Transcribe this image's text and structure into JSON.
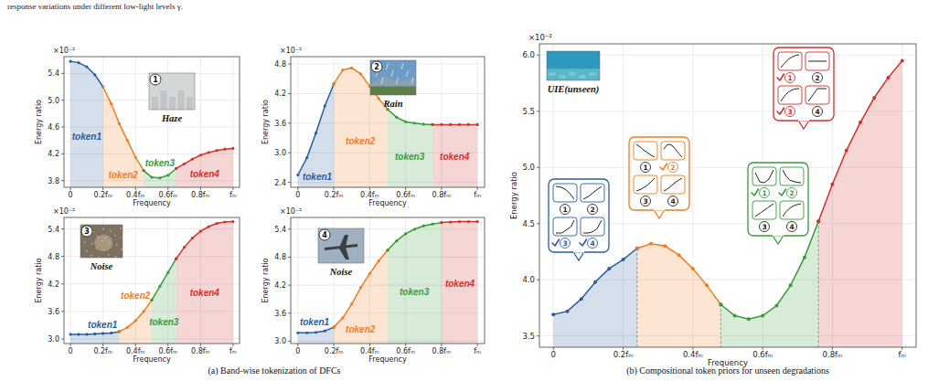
{
  "page": {
    "top_text": "response variations under different low-light levels γ.",
    "captions": [
      "(a) Band-wise tokenization of DFCs",
      "(b) Compositional token priors for unseen degradations"
    ]
  },
  "chart_data": [
    {
      "type": "area",
      "marker": "circle",
      "grid": true,
      "x_label": "Frequency",
      "y_label": "Energy ratio",
      "y_multiplier": "×10⁻²",
      "annotations": [
        {
          "text": "Haze",
          "badge": "1"
        }
      ],
      "x": [
        0,
        0.05,
        0.1,
        0.15,
        0.2,
        0.25,
        0.3,
        0.35,
        0.4,
        0.45,
        0.5,
        0.55,
        0.6,
        0.65,
        0.7,
        0.75,
        0.8,
        0.85,
        0.9,
        0.95,
        1
      ],
      "xlim": [
        -0.04,
        1.04
      ],
      "xticks": [
        0,
        {
          "value": 0.2,
          "label": "0.2fₘ"
        },
        {
          "value": 0.4,
          "label": "0.4fₘ"
        },
        {
          "value": 0.6,
          "label": "0.6fₘ"
        },
        {
          "value": 0.8,
          "label": "0.8fₘ"
        },
        {
          "value": 1,
          "label": "fₘ"
        }
      ],
      "ylim": [
        3.7,
        5.65
      ],
      "yticks": [
        3.8,
        4.2,
        4.6,
        {
          "value": 5,
          "label": "5.0"
        },
        5.4
      ],
      "series": [
        {
          "name": "token1",
          "color": "#2b5d9b",
          "values": [
            5.58,
            5.56,
            5.5,
            5.38,
            5.2,
            null,
            null,
            null,
            null,
            null,
            null,
            null,
            null,
            null,
            null,
            null,
            null,
            null,
            null,
            null,
            null
          ]
        },
        {
          "name": "token2",
          "color": "#ee7d1e",
          "values": [
            null,
            null,
            null,
            null,
            5.2,
            4.95,
            4.65,
            4.4,
            4.15,
            3.95,
            null,
            null,
            null,
            null,
            null,
            null,
            null,
            null,
            null,
            null,
            null
          ]
        },
        {
          "name": "token3",
          "color": "#3a9a3a",
          "values": [
            null,
            null,
            null,
            null,
            null,
            null,
            null,
            null,
            null,
            3.95,
            3.85,
            3.84,
            3.88,
            3.98,
            null,
            null,
            null,
            null,
            null,
            null,
            null
          ]
        },
        {
          "name": "token4",
          "color": "#d0312d",
          "values": [
            null,
            null,
            null,
            null,
            null,
            null,
            null,
            null,
            null,
            null,
            null,
            null,
            null,
            3.98,
            4.05,
            4.12,
            4.18,
            4.22,
            4.25,
            4.27,
            4.28
          ]
        }
      ]
    },
    {
      "type": "area",
      "marker": "circle",
      "grid": true,
      "x_label": "Frequency",
      "y_label": "Energy ratio",
      "y_multiplier": "×10⁻²",
      "annotations": [
        {
          "text": "Rain",
          "badge": "2"
        }
      ],
      "x": [
        0,
        0.05,
        0.1,
        0.15,
        0.2,
        0.25,
        0.3,
        0.35,
        0.4,
        0.45,
        0.5,
        0.55,
        0.6,
        0.65,
        0.7,
        0.75,
        0.8,
        0.85,
        0.9,
        0.95,
        1
      ],
      "xlim": [
        -0.04,
        1.04
      ],
      "xticks": [
        0,
        {
          "value": 0.2,
          "label": "0.2fₘ"
        },
        {
          "value": 0.4,
          "label": "0.4fₘ"
        },
        {
          "value": 0.6,
          "label": "0.6fₘ"
        },
        {
          "value": 0.8,
          "label": "0.8fₘ"
        },
        {
          "value": 1,
          "label": "fₘ"
        }
      ],
      "ylim": [
        2.3,
        4.95
      ],
      "yticks": [
        2.4,
        {
          "value": 3,
          "label": "3.0"
        },
        3.6,
        4.2,
        4.8
      ],
      "series": [
        {
          "name": "token1",
          "color": "#2b5d9b",
          "values": [
            2.55,
            2.9,
            3.4,
            3.95,
            4.4,
            null,
            null,
            null,
            null,
            null,
            null,
            null,
            null,
            null,
            null,
            null,
            null,
            null,
            null,
            null,
            null
          ]
        },
        {
          "name": "token2",
          "color": "#ee7d1e",
          "values": [
            null,
            null,
            null,
            null,
            4.4,
            4.68,
            4.72,
            4.6,
            4.35,
            4.1,
            3.88,
            null,
            null,
            null,
            null,
            null,
            null,
            null,
            null,
            null,
            null
          ]
        },
        {
          "name": "token3",
          "color": "#3a9a3a",
          "values": [
            null,
            null,
            null,
            null,
            null,
            null,
            null,
            null,
            null,
            null,
            3.88,
            3.72,
            3.63,
            3.6,
            3.58,
            3.57,
            null,
            null,
            null,
            null,
            null
          ]
        },
        {
          "name": "token4",
          "color": "#d0312d",
          "values": [
            null,
            null,
            null,
            null,
            null,
            null,
            null,
            null,
            null,
            null,
            null,
            null,
            null,
            null,
            null,
            3.57,
            3.57,
            3.57,
            3.57,
            3.57,
            3.57
          ]
        }
      ]
    },
    {
      "type": "area",
      "marker": "circle",
      "grid": true,
      "x_label": "Frequency",
      "y_label": "Energy ratio",
      "y_multiplier": "×10⁻²",
      "annotations": [
        {
          "text": "Noise",
          "badge": "3"
        }
      ],
      "x": [
        0,
        0.05,
        0.1,
        0.15,
        0.2,
        0.25,
        0.3,
        0.35,
        0.4,
        0.45,
        0.5,
        0.55,
        0.6,
        0.65,
        0.7,
        0.75,
        0.8,
        0.85,
        0.9,
        0.95,
        1
      ],
      "xlim": [
        -0.04,
        1.04
      ],
      "xticks": [
        0,
        {
          "value": 0.2,
          "label": "0.2fₘ"
        },
        {
          "value": 0.4,
          "label": "0.4fₘ"
        },
        {
          "value": 0.6,
          "label": "0.6fₘ"
        },
        {
          "value": 0.8,
          "label": "0.8fₘ"
        },
        {
          "value": 1,
          "label": "fₘ"
        }
      ],
      "ylim": [
        2.9,
        5.65
      ],
      "yticks": [
        {
          "value": 3,
          "label": "3.0"
        },
        3.6,
        4.2,
        4.8,
        5.4
      ],
      "series": [
        {
          "name": "token1",
          "color": "#2b5d9b",
          "values": [
            3.1,
            3.1,
            3.1,
            3.11,
            3.12,
            3.13,
            3.16,
            null,
            null,
            null,
            null,
            null,
            null,
            null,
            null,
            null,
            null,
            null,
            null,
            null,
            null
          ]
        },
        {
          "name": "token2",
          "color": "#ee7d1e",
          "values": [
            null,
            null,
            null,
            null,
            null,
            null,
            3.16,
            3.25,
            3.4,
            3.6,
            3.85,
            null,
            null,
            null,
            null,
            null,
            null,
            null,
            null,
            null,
            null
          ]
        },
        {
          "name": "token3",
          "color": "#3a9a3a",
          "values": [
            null,
            null,
            null,
            null,
            null,
            null,
            null,
            null,
            null,
            null,
            3.85,
            4.15,
            4.45,
            4.75,
            null,
            null,
            null,
            null,
            null,
            null,
            null
          ]
        },
        {
          "name": "token4",
          "color": "#d0312d",
          "values": [
            null,
            null,
            null,
            null,
            null,
            null,
            null,
            null,
            null,
            null,
            null,
            null,
            null,
            4.75,
            5.0,
            5.2,
            5.35,
            5.45,
            5.52,
            5.55,
            5.56
          ]
        }
      ]
    },
    {
      "type": "area",
      "marker": "circle",
      "grid": true,
      "x_label": "Frequency",
      "y_label": "Energy ratio",
      "y_multiplier": "×10⁻²",
      "annotations": [
        {
          "text": "Noise",
          "badge": "4"
        }
      ],
      "x": [
        0,
        0.05,
        0.1,
        0.15,
        0.2,
        0.25,
        0.3,
        0.35,
        0.4,
        0.45,
        0.5,
        0.55,
        0.6,
        0.65,
        0.7,
        0.75,
        0.8,
        0.85,
        0.9,
        0.95,
        1
      ],
      "xlim": [
        -0.04,
        1.04
      ],
      "xticks": [
        0,
        {
          "value": 0.2,
          "label": "0.2fₘ"
        },
        {
          "value": 0.4,
          "label": "0.4fₘ"
        },
        {
          "value": 0.6,
          "label": "0.6fₘ"
        },
        {
          "value": 0.8,
          "label": "0.8fₘ"
        },
        {
          "value": 1,
          "label": "fₘ"
        }
      ],
      "ylim": [
        2.95,
        5.65
      ],
      "yticks": [
        {
          "value": 3,
          "label": "3.0"
        },
        3.6,
        4.2,
        4.8,
        5.4
      ],
      "series": [
        {
          "name": "token1",
          "color": "#2b5d9b",
          "values": [
            3.18,
            3.18,
            3.19,
            3.22,
            3.3,
            null,
            null,
            null,
            null,
            null,
            null,
            null,
            null,
            null,
            null,
            null,
            null,
            null,
            null,
            null,
            null
          ]
        },
        {
          "name": "token2",
          "color": "#ee7d1e",
          "values": [
            null,
            null,
            null,
            null,
            3.3,
            3.5,
            3.8,
            4.15,
            4.45,
            4.72,
            4.95,
            null,
            null,
            null,
            null,
            null,
            null,
            null,
            null,
            null,
            null
          ]
        },
        {
          "name": "token3",
          "color": "#3a9a3a",
          "values": [
            null,
            null,
            null,
            null,
            null,
            null,
            null,
            null,
            null,
            null,
            4.95,
            5.15,
            5.3,
            5.4,
            5.47,
            5.51,
            5.54,
            null,
            null,
            null,
            null
          ]
        },
        {
          "name": "token4",
          "color": "#d0312d",
          "values": [
            null,
            null,
            null,
            null,
            null,
            null,
            null,
            null,
            null,
            null,
            null,
            null,
            null,
            null,
            null,
            null,
            5.54,
            5.55,
            5.56,
            5.56,
            5.56
          ]
        }
      ]
    },
    {
      "type": "area",
      "marker": "circle",
      "grid": true,
      "x_label": "Frequency",
      "y_label": "Energy ratio",
      "y_multiplier": "×10⁻²",
      "annotations": [
        {
          "text": "UIE(unseen)"
        }
      ],
      "x": [
        0,
        0.04,
        0.08,
        0.12,
        0.16,
        0.2,
        0.24,
        0.28,
        0.32,
        0.36,
        0.4,
        0.44,
        0.48,
        0.52,
        0.56,
        0.6,
        0.64,
        0.68,
        0.72,
        0.76,
        0.8,
        0.84,
        0.88,
        0.92,
        0.96,
        1
      ],
      "xlim": [
        -0.04,
        1.04
      ],
      "xticks": [
        0,
        {
          "value": 0.2,
          "label": "0.2fₘ"
        },
        {
          "value": 0.4,
          "label": "0.4fₘ"
        },
        {
          "value": 0.6,
          "label": "0.6fₘ"
        },
        {
          "value": 0.8,
          "label": "0.8fₘ"
        },
        {
          "value": 1,
          "label": "fₘ"
        }
      ],
      "ylim": [
        3.4,
        6.1
      ],
      "yticks": [
        3.5,
        {
          "value": 4,
          "label": "4.0"
        },
        4.5,
        {
          "value": 5,
          "label": "5.0"
        },
        5.5,
        {
          "value": 6,
          "label": "6.0"
        }
      ],
      "series": [
        {
          "color": "#2b5d9b",
          "checked": [
            3,
            4
          ],
          "values": [
            3.69,
            3.72,
            3.83,
            3.98,
            4.1,
            4.18,
            4.28,
            null,
            null,
            null,
            null,
            null,
            null,
            null,
            null,
            null,
            null,
            null,
            null,
            null,
            null,
            null,
            null,
            null,
            null,
            null
          ]
        },
        {
          "color": "#ee7d1e",
          "checked": [
            2
          ],
          "values": [
            null,
            null,
            null,
            null,
            null,
            null,
            4.28,
            4.32,
            4.3,
            4.22,
            4.1,
            3.95,
            3.78,
            null,
            null,
            null,
            null,
            null,
            null,
            null,
            null,
            null,
            null,
            null,
            null,
            null
          ]
        },
        {
          "color": "#3a9a3a",
          "checked": [
            1,
            2
          ],
          "values": [
            null,
            null,
            null,
            null,
            null,
            null,
            null,
            null,
            null,
            null,
            null,
            null,
            3.78,
            3.68,
            3.65,
            3.68,
            3.77,
            3.95,
            4.2,
            4.52,
            null,
            null,
            null,
            null,
            null,
            null
          ]
        },
        {
          "color": "#d0312d",
          "checked": [
            1,
            3
          ],
          "values": [
            null,
            null,
            null,
            null,
            null,
            null,
            null,
            null,
            null,
            null,
            null,
            null,
            null,
            null,
            null,
            null,
            null,
            null,
            null,
            4.52,
            4.85,
            5.15,
            5.4,
            5.62,
            5.8,
            5.95
          ]
        }
      ]
    }
  ]
}
